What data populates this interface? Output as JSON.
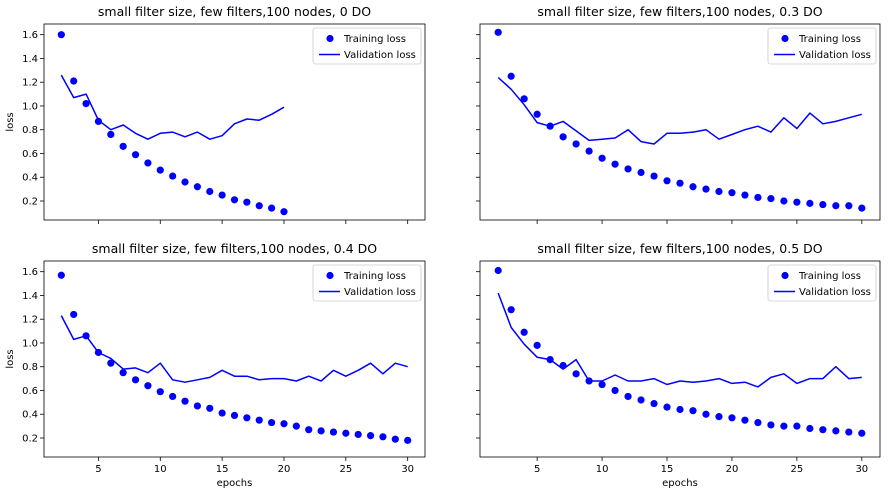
{
  "colors": {
    "series": "#0000ff",
    "axes": "#000000",
    "background": "#ffffff",
    "legend_border": "#cccccc"
  },
  "chart_data": [
    {
      "type": "scatter+line",
      "title": "small filter size, few filters,100 nodes, 0 DO",
      "xlabel": "",
      "ylabel": "loss",
      "xlim": [
        0.6,
        31.4
      ],
      "ylim": [
        0.04,
        1.69
      ],
      "xticks": [
        5,
        10,
        15,
        20,
        25,
        30
      ],
      "xtick_labels": false,
      "yticks": [
        0.2,
        0.4,
        0.6,
        0.8,
        1.0,
        1.2,
        1.4,
        1.6
      ],
      "ytick_labels": [
        "0.2",
        "0.4",
        "0.6",
        "0.8",
        "1.0",
        "1.2",
        "1.4",
        "1.6"
      ],
      "legend": "top-right",
      "series": [
        {
          "name": "Training loss",
          "kind": "scatter",
          "x": [
            2,
            3,
            4,
            5,
            6,
            7,
            8,
            9,
            10,
            11,
            12,
            13,
            14,
            15,
            16,
            17,
            18,
            19,
            20
          ],
          "y": [
            1.6,
            1.21,
            1.02,
            0.87,
            0.76,
            0.66,
            0.59,
            0.52,
            0.46,
            0.41,
            0.36,
            0.32,
            0.28,
            0.25,
            0.21,
            0.19,
            0.16,
            0.14,
            0.11
          ]
        },
        {
          "name": "Validation loss",
          "kind": "line",
          "x": [
            2,
            3,
            4,
            5,
            6,
            7,
            8,
            9,
            10,
            11,
            12,
            13,
            14,
            15,
            16,
            17,
            18,
            19,
            20
          ],
          "y": [
            1.26,
            1.07,
            1.1,
            0.88,
            0.8,
            0.84,
            0.77,
            0.72,
            0.77,
            0.78,
            0.74,
            0.78,
            0.72,
            0.75,
            0.85,
            0.89,
            0.88,
            0.93,
            0.99
          ]
        }
      ]
    },
    {
      "type": "scatter+line",
      "title": "small filter size, few filters,100 nodes, 0.3 DO",
      "xlabel": "",
      "ylabel": "",
      "xlim": [
        0.6,
        31.4
      ],
      "ylim": [
        0.04,
        1.69
      ],
      "xticks": [
        5,
        10,
        15,
        20,
        25,
        30
      ],
      "xtick_labels": false,
      "yticks": [
        0.2,
        0.4,
        0.6,
        0.8,
        1.0,
        1.2,
        1.4,
        1.6
      ],
      "ytick_labels": false,
      "legend": "top-right",
      "series": [
        {
          "name": "Training loss",
          "kind": "scatter",
          "x": [
            2,
            3,
            4,
            5,
            6,
            7,
            8,
            9,
            10,
            11,
            12,
            13,
            14,
            15,
            16,
            17,
            18,
            19,
            20,
            21,
            22,
            23,
            24,
            25,
            26,
            27,
            28,
            29,
            30
          ],
          "y": [
            1.62,
            1.25,
            1.06,
            0.93,
            0.83,
            0.74,
            0.68,
            0.62,
            0.56,
            0.51,
            0.47,
            0.44,
            0.41,
            0.37,
            0.35,
            0.32,
            0.3,
            0.28,
            0.27,
            0.25,
            0.23,
            0.22,
            0.2,
            0.19,
            0.18,
            0.17,
            0.16,
            0.16,
            0.14
          ]
        },
        {
          "name": "Validation loss",
          "kind": "line",
          "x": [
            2,
            3,
            4,
            5,
            6,
            7,
            8,
            9,
            10,
            11,
            12,
            13,
            14,
            15,
            16,
            17,
            18,
            19,
            20,
            21,
            22,
            23,
            24,
            25,
            26,
            27,
            28,
            29,
            30
          ],
          "y": [
            1.24,
            1.14,
            1.01,
            0.86,
            0.83,
            0.87,
            0.79,
            0.71,
            0.72,
            0.73,
            0.8,
            0.7,
            0.68,
            0.77,
            0.77,
            0.78,
            0.8,
            0.72,
            0.76,
            0.8,
            0.83,
            0.78,
            0.9,
            0.81,
            0.94,
            0.85,
            0.87,
            0.9,
            0.93
          ]
        }
      ]
    },
    {
      "type": "scatter+line",
      "title": "small filter size, few filters,100 nodes, 0.4 DO",
      "xlabel": "epochs",
      "ylabel": "loss",
      "xlim": [
        0.6,
        31.4
      ],
      "ylim": [
        0.04,
        1.69
      ],
      "xticks": [
        5,
        10,
        15,
        20,
        25,
        30
      ],
      "xtick_labels": [
        "5",
        "10",
        "15",
        "20",
        "25",
        "30"
      ],
      "yticks": [
        0.2,
        0.4,
        0.6,
        0.8,
        1.0,
        1.2,
        1.4,
        1.6
      ],
      "ytick_labels": [
        "0.2",
        "0.4",
        "0.6",
        "0.8",
        "1.0",
        "1.2",
        "1.4",
        "1.6"
      ],
      "legend": "top-right",
      "series": [
        {
          "name": "Training loss",
          "kind": "scatter",
          "x": [
            2,
            3,
            4,
            5,
            6,
            7,
            8,
            9,
            10,
            11,
            12,
            13,
            14,
            15,
            16,
            17,
            18,
            19,
            20,
            21,
            22,
            23,
            24,
            25,
            26,
            27,
            28,
            29,
            30
          ],
          "y": [
            1.57,
            1.24,
            1.06,
            0.92,
            0.83,
            0.75,
            0.69,
            0.64,
            0.59,
            0.55,
            0.51,
            0.47,
            0.45,
            0.41,
            0.39,
            0.37,
            0.35,
            0.33,
            0.32,
            0.3,
            0.27,
            0.26,
            0.25,
            0.24,
            0.23,
            0.22,
            0.21,
            0.19,
            0.18
          ]
        },
        {
          "name": "Validation loss",
          "kind": "line",
          "x": [
            2,
            3,
            4,
            5,
            6,
            7,
            8,
            9,
            10,
            11,
            12,
            13,
            14,
            15,
            16,
            17,
            18,
            19,
            20,
            21,
            22,
            23,
            24,
            25,
            26,
            27,
            28,
            29,
            30
          ],
          "y": [
            1.23,
            1.03,
            1.06,
            0.92,
            0.87,
            0.78,
            0.79,
            0.75,
            0.83,
            0.69,
            0.67,
            0.69,
            0.71,
            0.77,
            0.72,
            0.72,
            0.69,
            0.7,
            0.7,
            0.68,
            0.72,
            0.68,
            0.77,
            0.72,
            0.77,
            0.83,
            0.74,
            0.83,
            0.8
          ]
        }
      ]
    },
    {
      "type": "scatter+line",
      "title": "small filter size, few filters,100 nodes, 0.5 DO",
      "xlabel": "epochs",
      "ylabel": "",
      "xlim": [
        0.6,
        31.4
      ],
      "ylim": [
        0.04,
        1.69
      ],
      "xticks": [
        5,
        10,
        15,
        20,
        25,
        30
      ],
      "xtick_labels": [
        "5",
        "10",
        "15",
        "20",
        "25",
        "30"
      ],
      "yticks": [
        0.2,
        0.4,
        0.6,
        0.8,
        1.0,
        1.2,
        1.4,
        1.6
      ],
      "ytick_labels": false,
      "legend": "top-right",
      "series": [
        {
          "name": "Training loss",
          "kind": "scatter",
          "x": [
            2,
            3,
            4,
            5,
            6,
            7,
            8,
            9,
            10,
            11,
            12,
            13,
            14,
            15,
            16,
            17,
            18,
            19,
            20,
            21,
            22,
            23,
            24,
            25,
            26,
            27,
            28,
            29,
            30
          ],
          "y": [
            1.61,
            1.28,
            1.09,
            0.98,
            0.86,
            0.81,
            0.74,
            0.68,
            0.65,
            0.6,
            0.55,
            0.52,
            0.49,
            0.46,
            0.44,
            0.43,
            0.4,
            0.38,
            0.37,
            0.35,
            0.33,
            0.31,
            0.3,
            0.3,
            0.28,
            0.27,
            0.26,
            0.25,
            0.24
          ]
        },
        {
          "name": "Validation loss",
          "kind": "line",
          "x": [
            2,
            3,
            4,
            5,
            6,
            7,
            8,
            9,
            10,
            11,
            12,
            13,
            14,
            15,
            16,
            17,
            18,
            19,
            20,
            21,
            22,
            23,
            24,
            25,
            26,
            27,
            28,
            29,
            30
          ],
          "y": [
            1.42,
            1.13,
            0.99,
            0.88,
            0.86,
            0.78,
            0.86,
            0.68,
            0.68,
            0.73,
            0.68,
            0.68,
            0.7,
            0.65,
            0.68,
            0.67,
            0.68,
            0.7,
            0.66,
            0.67,
            0.63,
            0.71,
            0.74,
            0.66,
            0.7,
            0.7,
            0.8,
            0.7,
            0.71
          ]
        }
      ]
    }
  ]
}
